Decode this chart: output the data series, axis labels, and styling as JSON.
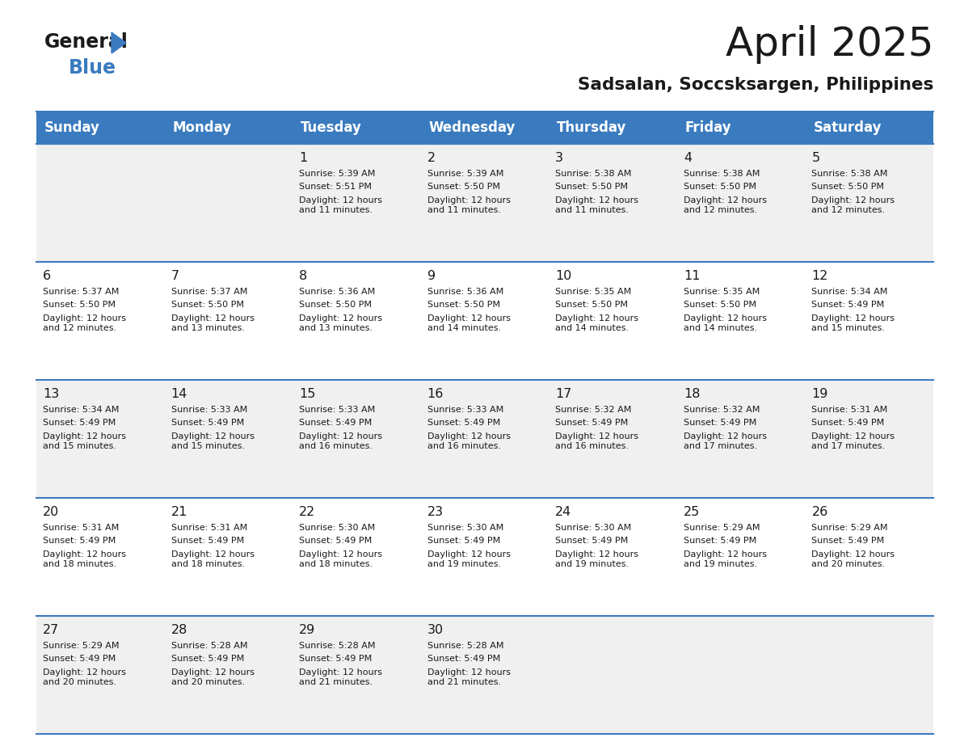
{
  "title": "April 2025",
  "subtitle": "Sadsalan, Soccsksargen, Philippines",
  "header_bg_color": "#3a7bbf",
  "header_text_color": "#ffffff",
  "row_bg_even": "#f0f0f0",
  "row_bg_odd": "#ffffff",
  "separator_color": "#3a7bbf",
  "grid_line_color": "#c0c0c0",
  "days_of_week": [
    "Sunday",
    "Monday",
    "Tuesday",
    "Wednesday",
    "Thursday",
    "Friday",
    "Saturday"
  ],
  "calendar_data": [
    [
      {
        "day": "",
        "sunrise": "",
        "sunset": "",
        "daylight": ""
      },
      {
        "day": "",
        "sunrise": "",
        "sunset": "",
        "daylight": ""
      },
      {
        "day": "1",
        "sunrise": "5:39 AM",
        "sunset": "5:51 PM",
        "daylight": "12 hours\nand 11 minutes."
      },
      {
        "day": "2",
        "sunrise": "5:39 AM",
        "sunset": "5:50 PM",
        "daylight": "12 hours\nand 11 minutes."
      },
      {
        "day": "3",
        "sunrise": "5:38 AM",
        "sunset": "5:50 PM",
        "daylight": "12 hours\nand 11 minutes."
      },
      {
        "day": "4",
        "sunrise": "5:38 AM",
        "sunset": "5:50 PM",
        "daylight": "12 hours\nand 12 minutes."
      },
      {
        "day": "5",
        "sunrise": "5:38 AM",
        "sunset": "5:50 PM",
        "daylight": "12 hours\nand 12 minutes."
      }
    ],
    [
      {
        "day": "6",
        "sunrise": "5:37 AM",
        "sunset": "5:50 PM",
        "daylight": "12 hours\nand 12 minutes."
      },
      {
        "day": "7",
        "sunrise": "5:37 AM",
        "sunset": "5:50 PM",
        "daylight": "12 hours\nand 13 minutes."
      },
      {
        "day": "8",
        "sunrise": "5:36 AM",
        "sunset": "5:50 PM",
        "daylight": "12 hours\nand 13 minutes."
      },
      {
        "day": "9",
        "sunrise": "5:36 AM",
        "sunset": "5:50 PM",
        "daylight": "12 hours\nand 14 minutes."
      },
      {
        "day": "10",
        "sunrise": "5:35 AM",
        "sunset": "5:50 PM",
        "daylight": "12 hours\nand 14 minutes."
      },
      {
        "day": "11",
        "sunrise": "5:35 AM",
        "sunset": "5:50 PM",
        "daylight": "12 hours\nand 14 minutes."
      },
      {
        "day": "12",
        "sunrise": "5:34 AM",
        "sunset": "5:49 PM",
        "daylight": "12 hours\nand 15 minutes."
      }
    ],
    [
      {
        "day": "13",
        "sunrise": "5:34 AM",
        "sunset": "5:49 PM",
        "daylight": "12 hours\nand 15 minutes."
      },
      {
        "day": "14",
        "sunrise": "5:33 AM",
        "sunset": "5:49 PM",
        "daylight": "12 hours\nand 15 minutes."
      },
      {
        "day": "15",
        "sunrise": "5:33 AM",
        "sunset": "5:49 PM",
        "daylight": "12 hours\nand 16 minutes."
      },
      {
        "day": "16",
        "sunrise": "5:33 AM",
        "sunset": "5:49 PM",
        "daylight": "12 hours\nand 16 minutes."
      },
      {
        "day": "17",
        "sunrise": "5:32 AM",
        "sunset": "5:49 PM",
        "daylight": "12 hours\nand 16 minutes."
      },
      {
        "day": "18",
        "sunrise": "5:32 AM",
        "sunset": "5:49 PM",
        "daylight": "12 hours\nand 17 minutes."
      },
      {
        "day": "19",
        "sunrise": "5:31 AM",
        "sunset": "5:49 PM",
        "daylight": "12 hours\nand 17 minutes."
      }
    ],
    [
      {
        "day": "20",
        "sunrise": "5:31 AM",
        "sunset": "5:49 PM",
        "daylight": "12 hours\nand 18 minutes."
      },
      {
        "day": "21",
        "sunrise": "5:31 AM",
        "sunset": "5:49 PM",
        "daylight": "12 hours\nand 18 minutes."
      },
      {
        "day": "22",
        "sunrise": "5:30 AM",
        "sunset": "5:49 PM",
        "daylight": "12 hours\nand 18 minutes."
      },
      {
        "day": "23",
        "sunrise": "5:30 AM",
        "sunset": "5:49 PM",
        "daylight": "12 hours\nand 19 minutes."
      },
      {
        "day": "24",
        "sunrise": "5:30 AM",
        "sunset": "5:49 PM",
        "daylight": "12 hours\nand 19 minutes."
      },
      {
        "day": "25",
        "sunrise": "5:29 AM",
        "sunset": "5:49 PM",
        "daylight": "12 hours\nand 19 minutes."
      },
      {
        "day": "26",
        "sunrise": "5:29 AM",
        "sunset": "5:49 PM",
        "daylight": "12 hours\nand 20 minutes."
      }
    ],
    [
      {
        "day": "27",
        "sunrise": "5:29 AM",
        "sunset": "5:49 PM",
        "daylight": "12 hours\nand 20 minutes."
      },
      {
        "day": "28",
        "sunrise": "5:28 AM",
        "sunset": "5:49 PM",
        "daylight": "12 hours\nand 20 minutes."
      },
      {
        "day": "29",
        "sunrise": "5:28 AM",
        "sunset": "5:49 PM",
        "daylight": "12 hours\nand 21 minutes."
      },
      {
        "day": "30",
        "sunrise": "5:28 AM",
        "sunset": "5:49 PM",
        "daylight": "12 hours\nand 21 minutes."
      },
      {
        "day": "",
        "sunrise": "",
        "sunset": "",
        "daylight": ""
      },
      {
        "day": "",
        "sunrise": "",
        "sunset": "",
        "daylight": ""
      },
      {
        "day": "",
        "sunrise": "",
        "sunset": "",
        "daylight": ""
      }
    ]
  ]
}
